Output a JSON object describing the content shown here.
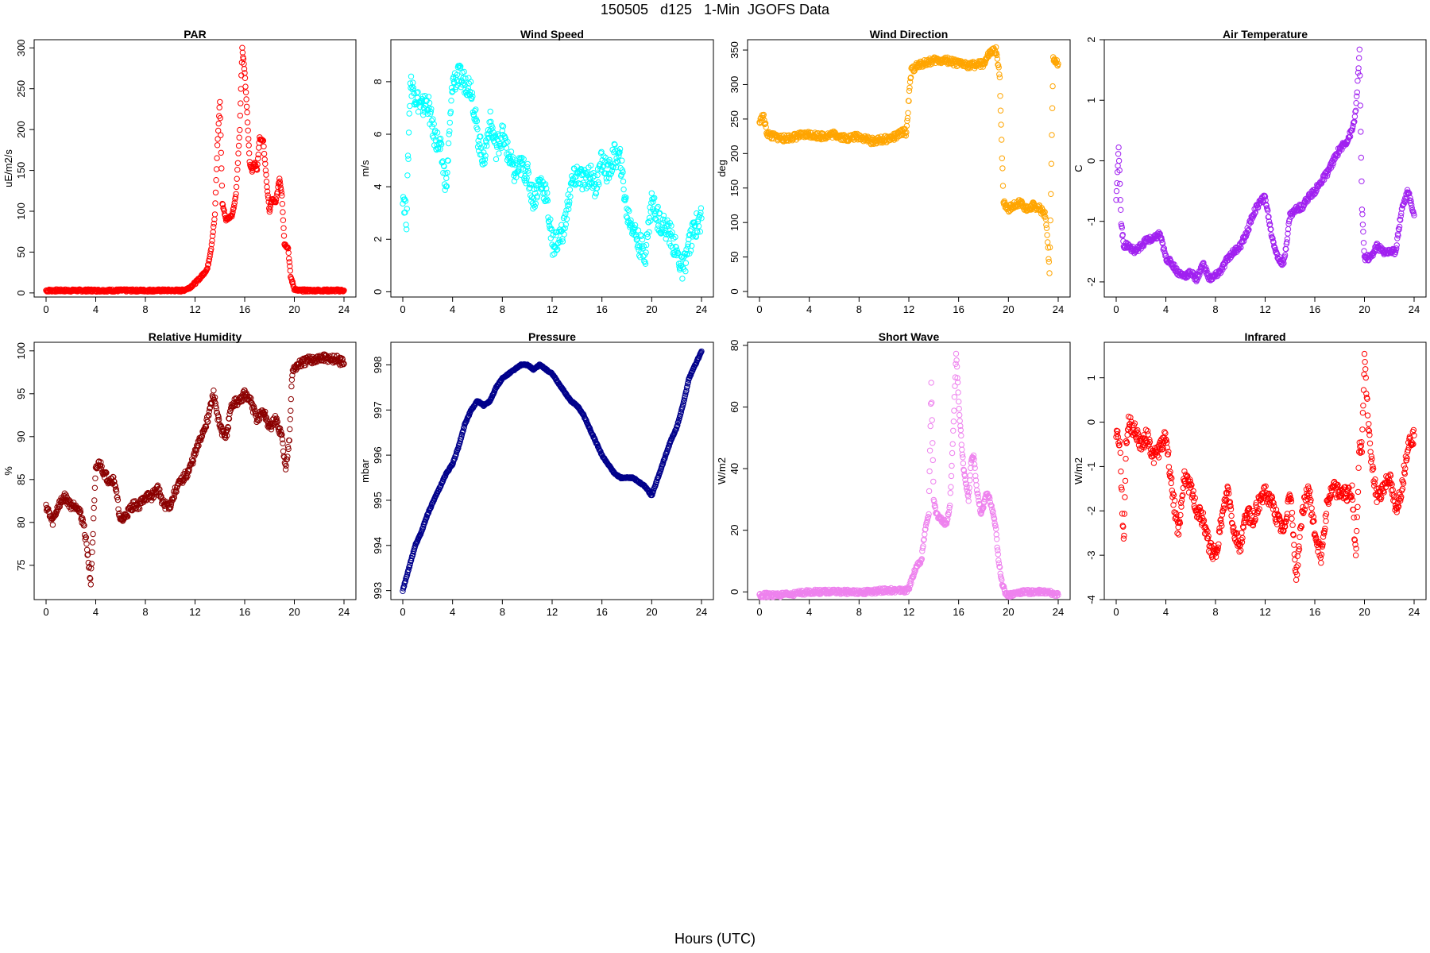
{
  "figure": {
    "title": "150505   d125   1-Min  JGOFS Data",
    "xlabel": "Hours (UTC)"
  },
  "chart_data": [
    {
      "type": "scatter",
      "title": "PAR",
      "ylabel": "uE/m2/s",
      "xlim": [
        0,
        24
      ],
      "ylim": [
        -5,
        310
      ],
      "xticks": [
        0,
        4,
        8,
        12,
        16,
        20,
        24
      ],
      "yticks": [
        0,
        50,
        100,
        150,
        200,
        250,
        300
      ],
      "color": "#ff0000",
      "series": [
        {
          "x": [
            0,
            1,
            2,
            3,
            4,
            5,
            6,
            7,
            8,
            9,
            10,
            11,
            11.5,
            12,
            12.5,
            13,
            13.3,
            13.6,
            13.8,
            14,
            14.2,
            14.5,
            15,
            15.3,
            15.6,
            15.8,
            16,
            16.2,
            16.4,
            16.6,
            16.8,
            17,
            17.2,
            17.5,
            17.8,
            18,
            18.2,
            18.5,
            18.8,
            19,
            19.2,
            19.5,
            19.7,
            20,
            20.3,
            21,
            22,
            23,
            24
          ],
          "y": [
            3,
            3,
            3,
            3,
            3,
            3,
            3,
            3,
            3,
            3,
            3,
            3,
            6,
            12,
            20,
            30,
            55,
            95,
            180,
            235,
            110,
            90,
            95,
            120,
            200,
            300,
            270,
            220,
            160,
            150,
            160,
            150,
            190,
            185,
            130,
            100,
            115,
            110,
            140,
            120,
            60,
            55,
            20,
            5,
            3,
            3,
            3,
            3,
            3
          ]
        }
      ]
    },
    {
      "type": "scatter",
      "title": "Wind Speed",
      "ylabel": "m/s",
      "xlim": [
        0,
        24
      ],
      "ylim": [
        -0.2,
        9.6
      ],
      "xticks": [
        0,
        4,
        8,
        12,
        16,
        20,
        24
      ],
      "yticks": [
        0,
        2,
        4,
        6,
        8
      ],
      "color": "#00ffff",
      "series": [
        {
          "x": [
            0,
            0.3,
            0.6,
            1,
            1.5,
            2,
            2.5,
            3,
            3.5,
            4,
            4.5,
            5,
            5.5,
            6,
            6.5,
            7,
            7.5,
            8,
            8.5,
            9,
            9.5,
            10,
            10.5,
            11,
            11.5,
            12,
            12.5,
            13,
            13.5,
            14,
            14.5,
            15,
            15.5,
            16,
            16.5,
            17,
            17.5,
            18,
            18.5,
            19,
            19.5,
            20,
            20.5,
            21,
            21.5,
            22,
            22.5,
            23,
            23.5,
            24
          ],
          "y": [
            3.8,
            2.8,
            8,
            7.5,
            7,
            7.2,
            6,
            5.5,
            4,
            8,
            8.2,
            8,
            7.8,
            6,
            5,
            6.5,
            5.5,
            6,
            5.2,
            4.5,
            4.8,
            4.5,
            3.5,
            4.2,
            3.8,
            1.8,
            2,
            2.5,
            4,
            4.5,
            4.2,
            4.5,
            4,
            5,
            4.5,
            5.2,
            5,
            3,
            2.5,
            1.8,
            1.5,
            3.5,
            2.8,
            2.5,
            2.2,
            1.5,
            0.8,
            1.8,
            2.5,
            2.8
          ]
        }
      ]
    },
    {
      "type": "scatter",
      "title": "Wind Direction",
      "ylabel": "deg",
      "xlim": [
        0,
        24
      ],
      "ylim": [
        -8,
        365
      ],
      "xticks": [
        0,
        4,
        8,
        12,
        16,
        20,
        24
      ],
      "yticks": [
        0,
        50,
        100,
        150,
        200,
        250,
        300,
        350
      ],
      "color": "#ffa500",
      "series": [
        {
          "x": [
            0,
            0.3,
            0.6,
            1,
            2,
            3,
            4,
            5,
            6,
            7,
            8,
            9,
            10,
            11,
            11.5,
            11.8,
            12,
            12.2,
            12.5,
            13,
            14,
            15,
            16,
            17,
            18,
            18.5,
            19,
            19.3,
            19.6,
            20,
            20.5,
            21,
            21.5,
            22,
            22.5,
            23,
            23.3,
            23.6,
            24
          ],
          "y": [
            245,
            255,
            230,
            225,
            222,
            225,
            228,
            225,
            228,
            222,
            225,
            218,
            220,
            225,
            232,
            230,
            280,
            320,
            325,
            330,
            335,
            335,
            330,
            328,
            330,
            345,
            350,
            310,
            130,
            120,
            125,
            130,
            118,
            125,
            120,
            110,
            30,
            340,
            330
          ]
        }
      ]
    },
    {
      "type": "scatter",
      "title": "Air Temperature",
      "ylabel": "C",
      "xlim": [
        0,
        24
      ],
      "ylim": [
        -2.25,
        2
      ],
      "xticks": [
        0,
        4,
        8,
        12,
        16,
        20,
        24
      ],
      "yticks": [
        -2,
        -1,
        0,
        1,
        2
      ],
      "color": "#a020f0",
      "series": [
        {
          "x": [
            0,
            0.2,
            0.4,
            0.6,
            1,
            1.5,
            2,
            2.5,
            3,
            3.5,
            4,
            4.5,
            5,
            5.5,
            6,
            6.5,
            7,
            7.5,
            8,
            8.5,
            9,
            9.5,
            10,
            10.5,
            11,
            11.5,
            12,
            12.5,
            13,
            13.5,
            14,
            14.5,
            15,
            15.5,
            16,
            16.5,
            17,
            17.5,
            18,
            18.5,
            19,
            19.3,
            19.6,
            19.8,
            20,
            20.5,
            21,
            21.5,
            22,
            22.5,
            23,
            23.5,
            24
          ],
          "y": [
            -0.6,
            0.2,
            -1,
            -1.4,
            -1.4,
            -1.5,
            -1.4,
            -1.3,
            -1.3,
            -1.2,
            -1.6,
            -1.7,
            -1.85,
            -1.9,
            -1.85,
            -1.95,
            -1.7,
            -1.95,
            -1.9,
            -1.8,
            -1.6,
            -1.5,
            -1.4,
            -1.2,
            -0.9,
            -0.7,
            -0.6,
            -1.2,
            -1.6,
            -1.7,
            -0.9,
            -0.8,
            -0.75,
            -0.6,
            -0.5,
            -0.35,
            -0.2,
            0,
            0.2,
            0.3,
            0.5,
            0.8,
            1.8,
            -0.8,
            -1.6,
            -1.6,
            -1.4,
            -1.5,
            -1.5,
            -1.5,
            -0.8,
            -0.5,
            -0.9
          ]
        }
      ]
    },
    {
      "type": "scatter",
      "title": "Relative Humidity",
      "ylabel": "%",
      "xlim": [
        0,
        24
      ],
      "ylim": [
        71,
        101
      ],
      "xticks": [
        0,
        4,
        8,
        12,
        16,
        20,
        24
      ],
      "yticks": [
        75,
        80,
        85,
        90,
        95,
        100
      ],
      "color": "#8b0000",
      "series": [
        {
          "x": [
            0,
            0.5,
            1,
            1.5,
            2,
            2.5,
            3,
            3.3,
            3.6,
            4,
            4.3,
            4.6,
            5,
            5.5,
            6,
            6.5,
            7,
            7.5,
            8,
            8.5,
            9,
            9.5,
            10,
            10.5,
            11,
            11.5,
            12,
            12.5,
            13,
            13.5,
            14,
            14.5,
            15,
            15.5,
            16,
            16.5,
            17,
            17.5,
            18,
            18.5,
            19,
            19.3,
            19.6,
            19.8,
            20,
            20.5,
            21,
            21.5,
            22,
            22.5,
            23,
            23.5,
            24
          ],
          "y": [
            82,
            80,
            82,
            83,
            82,
            82,
            80,
            77,
            73,
            86,
            87,
            86,
            85,
            85,
            80,
            81,
            82,
            82,
            83,
            83,
            84,
            82,
            82,
            84,
            85,
            86,
            88,
            90,
            92,
            95,
            91,
            90,
            94,
            94,
            95,
            94,
            92,
            93,
            91,
            92,
            90,
            86,
            90,
            97,
            98,
            98.5,
            98.8,
            99,
            99,
            99.2,
            99,
            99,
            98.5
          ]
        }
      ]
    },
    {
      "type": "scatter",
      "title": "Pressure",
      "ylabel": "mbar",
      "xlim": [
        0,
        24
      ],
      "ylim": [
        992.8,
        998.5
      ],
      "xticks": [
        0,
        4,
        8,
        12,
        16,
        20,
        24
      ],
      "yticks": [
        993,
        994,
        995,
        996,
        997,
        998
      ],
      "color": "#00008b",
      "series": [
        {
          "x": [
            0,
            0.5,
            1,
            1.5,
            2,
            2.5,
            3,
            3.5,
            4,
            4.5,
            5,
            5.5,
            6,
            6.5,
            7,
            7.5,
            8,
            8.5,
            9,
            9.5,
            10,
            10.5,
            11,
            11.5,
            12,
            12.5,
            13,
            13.5,
            14,
            14.5,
            15,
            15.5,
            16,
            16.5,
            17,
            17.5,
            18,
            18.5,
            19,
            19.5,
            20,
            20.5,
            21,
            21.5,
            22,
            22.5,
            23,
            23.5,
            24
          ],
          "y": [
            993,
            993.5,
            994,
            994.3,
            994.7,
            995,
            995.3,
            995.6,
            995.8,
            996.2,
            996.7,
            997,
            997.2,
            997.1,
            997.2,
            997.5,
            997.7,
            997.8,
            997.9,
            998,
            998,
            997.9,
            998,
            997.9,
            997.8,
            997.6,
            997.4,
            997.2,
            997.1,
            996.9,
            996.6,
            996.3,
            996,
            995.8,
            995.6,
            995.5,
            995.5,
            995.5,
            995.4,
            995.3,
            995.1,
            995.5,
            995.9,
            996.3,
            996.6,
            997.1,
            997.7,
            998,
            998.3
          ]
        }
      ]
    },
    {
      "type": "scatter",
      "title": "Short Wave",
      "ylabel": "W/m2",
      "xlim": [
        0,
        24
      ],
      "ylim": [
        -2.5,
        81
      ],
      "xticks": [
        0,
        4,
        8,
        12,
        16,
        20,
        24
      ],
      "yticks": [
        0,
        20,
        40,
        60,
        80
      ],
      "color": "#ee82ee",
      "series": [
        {
          "x": [
            0,
            1,
            2,
            3,
            4,
            5,
            6,
            7,
            8,
            9,
            10,
            11,
            11.8,
            12,
            12.3,
            12.6,
            13,
            13.3,
            13.6,
            13.8,
            14,
            14.2,
            14.5,
            15,
            15.3,
            15.6,
            15.8,
            16,
            16.2,
            16.4,
            16.6,
            16.8,
            17,
            17.2,
            17.5,
            17.8,
            18,
            18.2,
            18.5,
            18.8,
            19,
            19.2,
            19.5,
            19.7,
            20,
            20.5,
            21,
            22,
            23,
            24
          ],
          "y": [
            -1,
            -1,
            -1,
            -0.5,
            0,
            0,
            0,
            0,
            0,
            0,
            0.5,
            0.5,
            0.5,
            1,
            5,
            8,
            10,
            20,
            25,
            68,
            30,
            25,
            24,
            22,
            28,
            55,
            78,
            62,
            50,
            40,
            35,
            30,
            42,
            44,
            32,
            25,
            28,
            32,
            30,
            25,
            20,
            10,
            3,
            0,
            -1,
            -0.5,
            0,
            0,
            0,
            -1
          ]
        }
      ]
    },
    {
      "type": "scatter",
      "title": "Infrared",
      "ylabel": "W/m2",
      "xlim": [
        0,
        24
      ],
      "ylim": [
        -4,
        1.8
      ],
      "xticks": [
        0,
        4,
        8,
        12,
        16,
        20,
        24
      ],
      "yticks": [
        -4,
        -3,
        -2,
        -1,
        0,
        1
      ],
      "color": "#ff0000",
      "series": [
        {
          "x": [
            0,
            0.3,
            0.6,
            0.8,
            1,
            1.5,
            2,
            2.5,
            3,
            3.5,
            4,
            4.5,
            5,
            5.5,
            6,
            6.5,
            7,
            7.5,
            8,
            8.5,
            9,
            9.5,
            10,
            10.5,
            11,
            11.5,
            12,
            12.5,
            13,
            13.5,
            14,
            14.5,
            15,
            15.5,
            16,
            16.5,
            17,
            17.5,
            18,
            18.5,
            19,
            19.3,
            19.6,
            19.8,
            20,
            20.3,
            20.6,
            21,
            21.5,
            22,
            22.5,
            23,
            23.5,
            24
          ],
          "y": [
            -0.2,
            -0.5,
            -2.8,
            -0.5,
            0,
            -0.2,
            -0.5,
            -0.3,
            -0.8,
            -0.6,
            -0.3,
            -1.5,
            -2.5,
            -1.2,
            -1.5,
            -2,
            -2.2,
            -2.8,
            -3,
            -2.2,
            -1.5,
            -2.5,
            -2.8,
            -2,
            -2.2,
            -1.8,
            -1.6,
            -1.8,
            -2.2,
            -2.5,
            -1.5,
            -3.5,
            -2,
            -1.5,
            -2.5,
            -3,
            -1.8,
            -1.5,
            -1.6,
            -1.6,
            -1.6,
            -3,
            -0.5,
            -0.6,
            1.5,
            0,
            -1,
            -1.7,
            -1.5,
            -1.2,
            -2,
            -1.5,
            -0.5,
            -0.3
          ]
        }
      ]
    }
  ]
}
